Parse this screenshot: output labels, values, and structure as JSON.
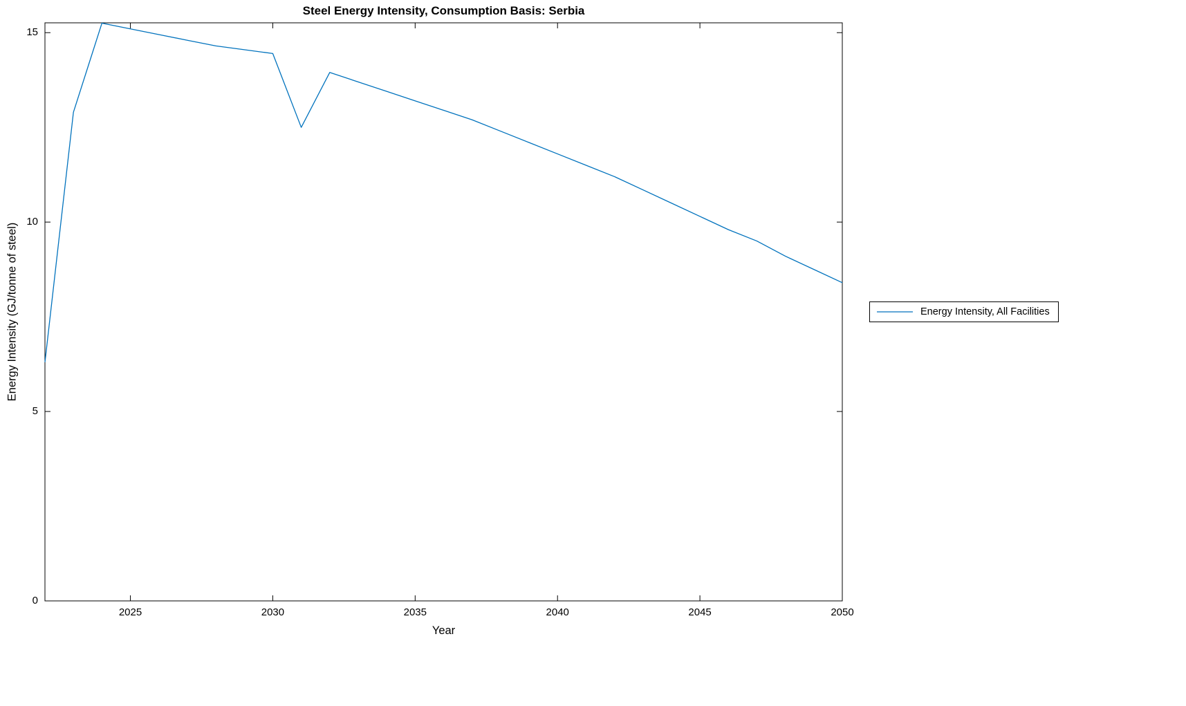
{
  "figure": {
    "background": "#ffffff",
    "axes_color": "#000000"
  },
  "chart_data": {
    "type": "line",
    "title": "Steel Energy Intensity, Consumption Basis: Serbia",
    "xlabel": "Year",
    "ylabel": "Energy Intensity (GJ/tonne of steel)",
    "x": [
      2022,
      2023,
      2024,
      2025,
      2026,
      2027,
      2028,
      2029,
      2030,
      2031,
      2032,
      2033,
      2034,
      2035,
      2036,
      2037,
      2038,
      2039,
      2040,
      2041,
      2042,
      2043,
      2044,
      2045,
      2046,
      2047,
      2048,
      2049,
      2050
    ],
    "series": [
      {
        "name": "Energy Intensity, All Facilities",
        "color": "#0072BD",
        "values": [
          6.3,
          12.9,
          15.25,
          15.1,
          14.95,
          14.8,
          14.65,
          14.55,
          14.45,
          12.5,
          13.95,
          13.7,
          13.45,
          13.2,
          12.95,
          12.7,
          12.4,
          12.1,
          11.8,
          11.5,
          11.2,
          10.85,
          10.5,
          10.15,
          9.8,
          9.5,
          9.1,
          8.75,
          8.4
        ]
      }
    ],
    "xlim": [
      2022,
      2050
    ],
    "ylim": [
      0,
      15.26
    ],
    "xticks": [
      2025,
      2030,
      2035,
      2040,
      2045,
      2050
    ],
    "yticks": [
      0,
      5,
      10,
      15
    ],
    "grid": false,
    "box": true,
    "legend_position": "right-outside"
  }
}
